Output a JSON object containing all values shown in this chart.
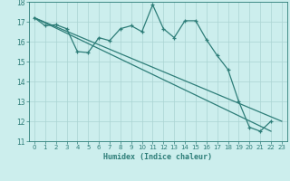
{
  "x": [
    0,
    1,
    2,
    3,
    4,
    5,
    6,
    7,
    8,
    9,
    10,
    11,
    12,
    13,
    14,
    15,
    16,
    17,
    18,
    19,
    20,
    21,
    22,
    23
  ],
  "y_zigzag": [
    17.2,
    16.8,
    16.85,
    16.65,
    15.5,
    15.45,
    16.2,
    16.05,
    16.65,
    16.8,
    16.5,
    17.85,
    16.65,
    16.2,
    17.05,
    17.05,
    16.1,
    15.3,
    14.6,
    13.0,
    11.7,
    11.5,
    12.0,
    null
  ],
  "trend1_x": [
    0,
    23
  ],
  "trend1_y": [
    17.2,
    12.0
  ],
  "trend2_x": [
    0,
    22
  ],
  "trend2_y": [
    17.2,
    11.5
  ],
  "bg_color": "#cceeed",
  "line_color": "#2d7d78",
  "grid_color": "#aad4d2",
  "xlabel": "Humidex (Indice chaleur)",
  "ylim": [
    11,
    18
  ],
  "xlim": [
    -0.5,
    23.5
  ],
  "yticks": [
    11,
    12,
    13,
    14,
    15,
    16,
    17,
    18
  ],
  "xticks": [
    0,
    1,
    2,
    3,
    4,
    5,
    6,
    7,
    8,
    9,
    10,
    11,
    12,
    13,
    14,
    15,
    16,
    17,
    18,
    19,
    20,
    21,
    22,
    23
  ],
  "title_fontsize": 7,
  "xlabel_fontsize": 6,
  "tick_fontsize": 5
}
